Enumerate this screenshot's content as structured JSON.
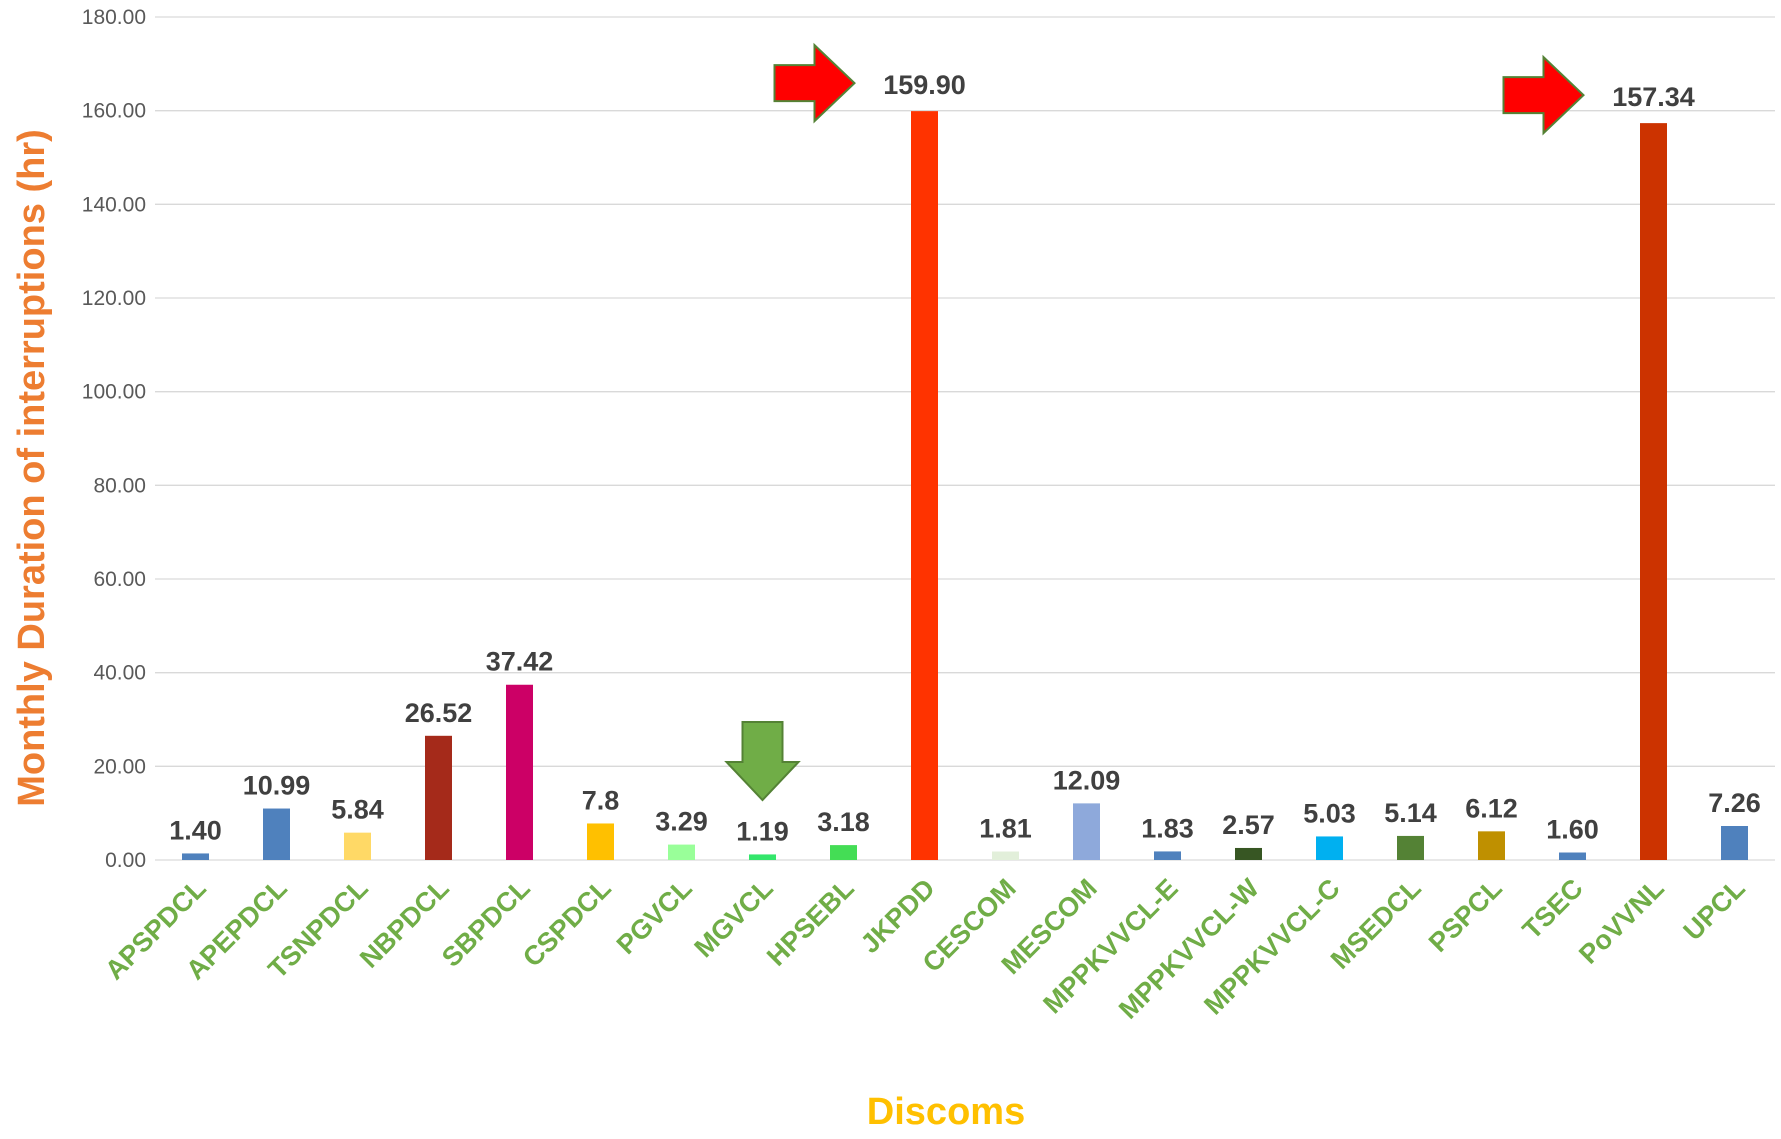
{
  "chart_data": {
    "type": "bar",
    "xlabel": "Discoms",
    "ylabel": "Monthly Duration of interruptions (hr)",
    "ylim": [
      0,
      180
    ],
    "yticks": [
      "0.00",
      "20.00",
      "40.00",
      "60.00",
      "80.00",
      "100.00",
      "120.00",
      "140.00",
      "160.00",
      "180.00"
    ],
    "grid": true,
    "categories": [
      "APSPDCL",
      "APEPDCL",
      "TSNPDCL",
      "NBPDCL",
      "SBPDCL",
      "CSPDCL",
      "PGVCL",
      "MGVCL",
      "HPSEBL",
      "JKPDD",
      "CESCOM",
      "MESCOM",
      "MPPKVVCL-E",
      "MPPKVVCL-W",
      "MPPKVVCL-C",
      "MSEDCL",
      "PSPCL",
      "TSEC",
      "PoVVNL",
      "UPCL"
    ],
    "values": [
      1.4,
      10.99,
      5.84,
      26.52,
      37.42,
      7.8,
      3.29,
      1.19,
      3.18,
      159.9,
      1.81,
      12.09,
      1.83,
      2.57,
      5.03,
      5.14,
      6.12,
      1.6,
      157.34,
      7.26
    ],
    "data_labels": [
      "1.40",
      "10.99",
      "5.84",
      "26.52",
      "37.42",
      "7.8",
      "3.29",
      "1.19",
      "3.18",
      "159.90",
      "1.81",
      "12.09",
      "1.83",
      "2.57",
      "5.03",
      "5.14",
      "6.12",
      "1.60",
      "157.34",
      "7.26"
    ],
    "bar_colors": [
      "#4F81BD",
      "#4F81BD",
      "#FFD966",
      "#A52A1A",
      "#CC0066",
      "#FFC000",
      "#99FF99",
      "#33E66B",
      "#44DD55",
      "#FF3300",
      "#E2EFDA",
      "#8EA9DB",
      "#4F81BD",
      "#375623",
      "#00B0F0",
      "#548235",
      "#BF9000",
      "#4F81BD",
      "#CC3300",
      "#4F81BD"
    ],
    "annotations": [
      {
        "type": "arrow-right",
        "color": "#FF0000",
        "border": "#548235",
        "target": "JKPDD"
      },
      {
        "type": "arrow-right",
        "color": "#FF0000",
        "border": "#548235",
        "target": "PoVVNL"
      },
      {
        "type": "arrow-down",
        "color": "#70AD47",
        "border": "#548235",
        "target": "MGVCL"
      }
    ]
  },
  "colors": {
    "ylabel": "#ED7D31",
    "xlabel": "#FFC000",
    "category_text": "#70AD47",
    "data_label_text": "#404040",
    "tick_text": "#595959",
    "grid": "#D9D9D9"
  }
}
